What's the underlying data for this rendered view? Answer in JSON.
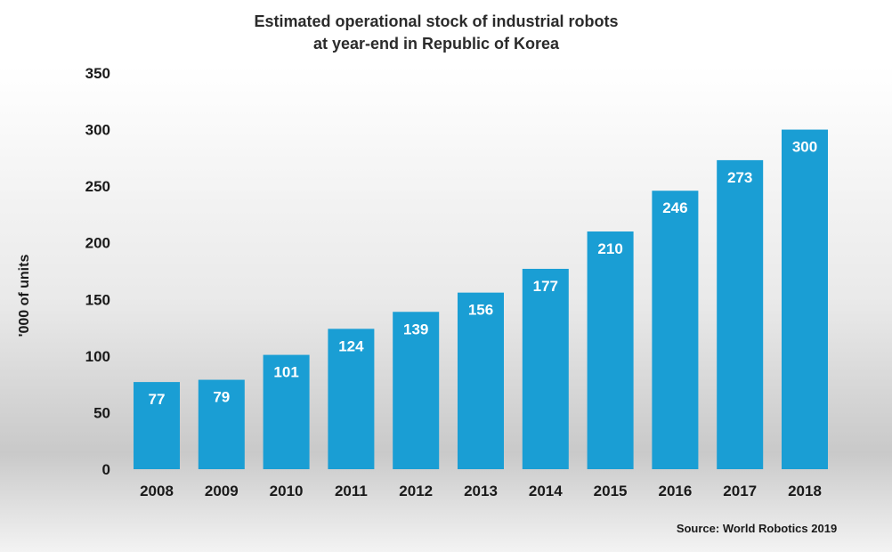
{
  "chart_data": {
    "type": "bar",
    "title": "Estimated operational stock of industrial robots",
    "subtitle": "at year-end in Republic of Korea",
    "ylabel": "'000 of units",
    "xlabel": "",
    "categories": [
      "2008",
      "2009",
      "2010",
      "2011",
      "2012",
      "2013",
      "2014",
      "2015",
      "2016",
      "2017",
      "2018"
    ],
    "values": [
      77,
      79,
      101,
      124,
      139,
      156,
      177,
      210,
      246,
      273,
      300
    ],
    "value_labels": [
      "77",
      "79",
      "101",
      "124",
      "139",
      "156",
      "177",
      "210",
      "246",
      "273",
      "300"
    ],
    "ylim": [
      0,
      350
    ],
    "yticks": [
      0,
      50,
      100,
      150,
      200,
      250,
      300,
      350
    ],
    "ytick_labels": [
      "0",
      "50",
      "100",
      "150",
      "200",
      "250",
      "300",
      "350"
    ],
    "grid": false,
    "legend": "none",
    "bar_color": "#1a9ed4",
    "source": "Source: World Robotics 2019"
  }
}
